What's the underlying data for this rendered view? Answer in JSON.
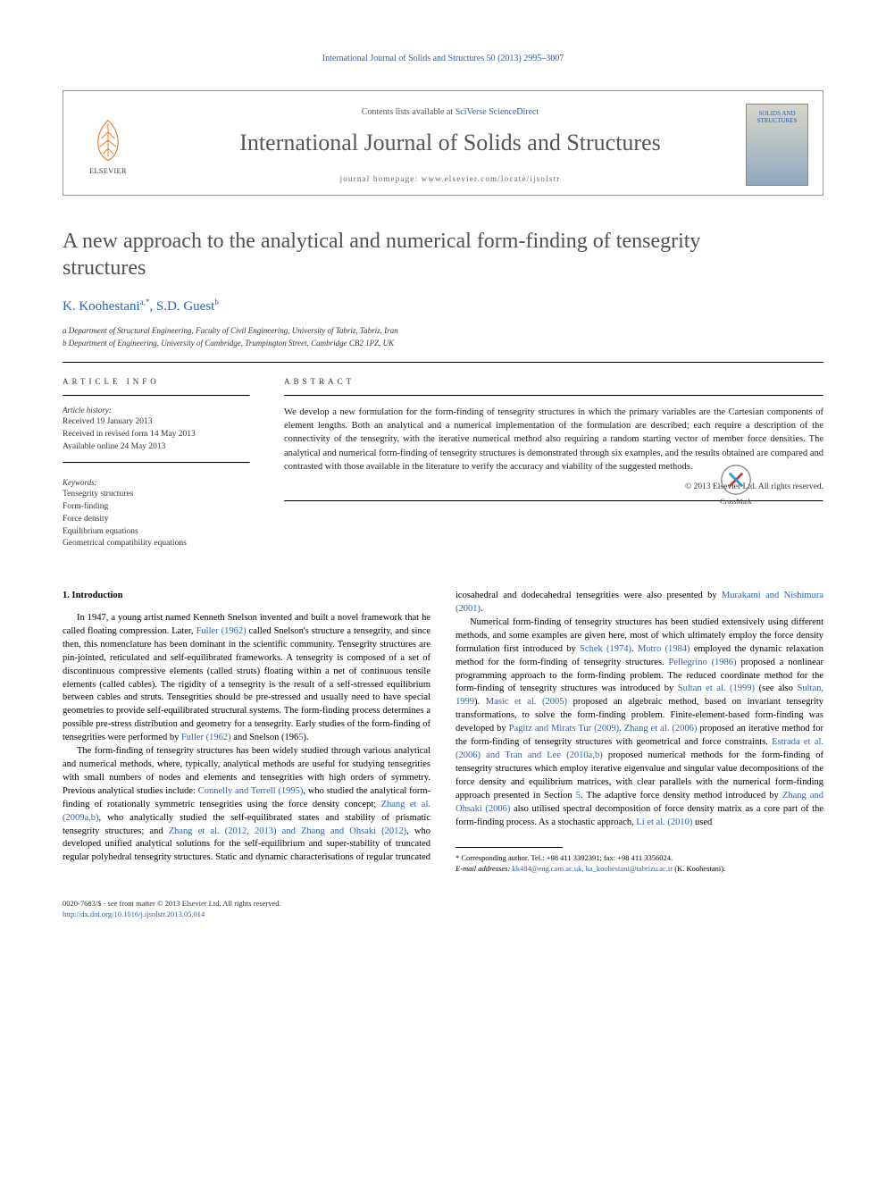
{
  "colors": {
    "link": "#2b62b4",
    "text": "#000000",
    "muted": "#555555",
    "bg": "#ffffff",
    "rule": "#000000"
  },
  "typography": {
    "body_family": "Georgia, 'Times New Roman', serif",
    "title_fontsize_pt": 24,
    "journal_title_fontsize_pt": 26,
    "body_fontsize_pt": 10.5,
    "meta_fontsize_pt": 9.5
  },
  "running_header": "International Journal of Solids and Structures 50 (2013) 2995–3007",
  "journal_box": {
    "publisher": "ELSEVIER",
    "contents_prefix": "Contents lists available at ",
    "contents_link": "SciVerse ScienceDirect",
    "journal_title": "International Journal of Solids and Structures",
    "homepage_label": "journal homepage: www.elsevier.com/locate/ijsolstr",
    "cover_label": "SOLIDS AND STRUCTURES"
  },
  "crossmark": "CrossMark",
  "article": {
    "title": "A new approach to the analytical and numerical form-finding of tensegrity structures",
    "authors_html": "K. Koohestani <sup>a,</sup>*, S.D. Guest <sup>b</sup>",
    "author1": "K. Koohestani",
    "author1_sup": "a,*",
    "author2": "S.D. Guest",
    "author2_sup": "b",
    "affiliations": [
      "a Department of Structural Engineering, Faculty of Civil Engineering, University of Tabriz, Tabriz, Iran",
      "b Department of Engineering, University of Cambridge, Trumpington Street, Cambridge CB2 1PZ, UK"
    ]
  },
  "article_info": {
    "heading": "ARTICLE INFO",
    "history_label": "Article history:",
    "history": [
      "Received 19 January 2013",
      "Received in revised form 14 May 2013",
      "Available online 24 May 2013"
    ],
    "keywords_label": "Keywords:",
    "keywords": [
      "Tensegrity structures",
      "Form-finding",
      "Force density",
      "Equilibrium equations",
      "Geometrical compatibility equations"
    ]
  },
  "abstract": {
    "heading": "ABSTRACT",
    "text": "We develop a new formulation for the form-finding of tensegrity structures in which the primary variables are the Cartesian components of element lengths. Both an analytical and a numerical implementation of the formulation are described; each require a description of the connectivity of the tensegrity, with the iterative numerical method also requiring a random starting vector of member force densities. The analytical and numerical form-finding of tensegrity structures is demonstrated through six examples, and the results obtained are compared and contrasted with those available in the literature to verify the accuracy and viability of the suggested methods.",
    "copyright": "© 2013 Elsevier Ltd. All rights reserved."
  },
  "section1": {
    "heading": "1. Introduction",
    "p1": "In 1947, a young artist named Kenneth Snelson invented and built a novel framework that he called floating compression. Later, Fuller (1962) called Snelson's structure a tensegrity, and since then, this nomenclature has been dominant in the scientific community. Tensegrity structures are pin-jointed, reticulated and self-equilibrated frameworks. A tensegrity is composed of a set of discontinuous compressive elements (called struts) floating within a net of continuous tensile elements (called cables). The rigidity of a tensegrity is the result of a self-stressed equilibrium between cables and struts. Tensegrities should be pre-stressed and usually need to have special geometries to provide self-equilibrated structural systems. The form-finding process determines a possible pre-stress distribution and geometry for a tensegrity. Early studies of the form-finding of tensegrities were performed by Fuller (1962) and Snelson (1965).",
    "p2": "The form-finding of tensegrity structures has been widely studied through various analytical and numerical methods, where, typically, analytical methods are useful for studying tensegrities with small numbers of nodes and elements and tensegrities with high orders of symmetry. Previous analytical studies include: Connelly and Terrell (1995), who studied the analytical form-finding of rotationally symmetric tensegrities using the force density concept; Zhang et al. (2009a,b), who analytically studied the self-equilibrated states and stability of prismatic tensegrity structures; and Zhang et al. (2012, 2013) and Zhang and Ohsaki (2012), who developed unified analytical solutions for the self-equilibrium and super-stability of truncated regular polyhedral tensegrity structures. Static and dynamic characterisations of regular truncated icosahedral and dodecahedral tensegrities were also presented by Murakami and Nishimura (2001).",
    "p3": "Numerical form-finding of tensegrity structures has been studied extensively using different methods, and some examples are given here, most of which ultimately employ the force density formulation first introduced by Schek (1974). Motro (1984) employed the dynamic relaxation method for the form-finding of tensegrity structures. Pellegrino (1986) proposed a nonlinear programming approach to the form-finding problem. The reduced coordinate method for the form-finding of tensegrity structures was introduced by Sultan et al. (1999) (see also Sultan, 1999). Masic et al. (2005) proposed an algebraic method, based on invariant tensegrity transformations, to solve the form-finding problem. Finite-element-based form-finding was developed by Pagitz and Mirats Tur (2009). Zhang et al. (2006) proposed an iterative method for the form-finding of tensegrity structures with geometrical and force constraints. Estrada et al. (2006) and Tran and Lee (2010a,b) proposed numerical methods for the form-finding of tensegrity structures which employ iterative eigenvalue and singular value decompositions of the force density and equilibrium matrices, with clear parallels with the numerical form-finding approach presented in Section 5. The adaptive force density method introduced by Zhang and Ohsaki (2006) also utilised spectral decomposition of force density matrix as a core part of the form-finding process. As a stochastic approach, Li et al. (2010) used"
  },
  "citations": [
    "Fuller (1962)",
    "Fuller (1962) and Snelson (1965)",
    "Connelly and Terrell (1995)",
    "Zhang et al. (2009a,b)",
    "Zhang et al. (2012, 2013) and Zhang and Ohsaki (2012)",
    "Murakami and Nishimura (2001)",
    "Schek (1974)",
    "Motro (1984)",
    "Pellegrino (1986)",
    "Sultan et al. (1999)",
    "Sultan, 1999",
    "Masic et al. (2005)",
    "Pagitz and Mirats Tur (2009)",
    "Zhang et al. (2006)",
    "Estrada et al. (2006) and Tran and Lee (2010a,b)",
    "5",
    "Zhang and Ohsaki (2006)",
    "Li et al. (2010)"
  ],
  "footnote": {
    "corr": "* Corresponding author. Tel.: +98 411 3392391; fax: +98 411 3356024.",
    "email_label": "E-mail addresses:",
    "emails": "kk484@eng.cam.ac.uk, ka_koohestani@tabrizu.ac.ir",
    "email_owner": "(K. Koohestani)."
  },
  "footer": {
    "issn": "0020-7683/$ - see front matter © 2013 Elsevier Ltd. All rights reserved.",
    "doi": "http://dx.doi.org/10.1016/j.ijsolstr.2013.05.014"
  }
}
